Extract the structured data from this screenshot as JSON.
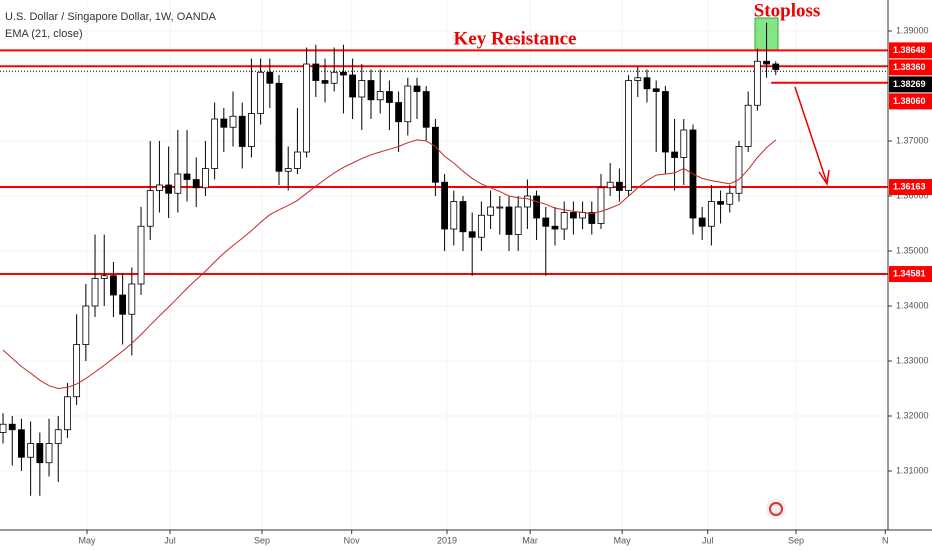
{
  "chart_data": {
    "type": "candlestick",
    "title": "U.S. Dollar / Singapore Dollar, 1W, OANDA",
    "indicator": {
      "name": "EMA (21, close)",
      "color": "#c62828",
      "values": [
        1.332,
        1.3305,
        1.329,
        1.3278,
        1.3265,
        1.3255,
        1.325,
        1.3252,
        1.3258,
        1.3268,
        1.328,
        1.3292,
        1.3305,
        1.3318,
        1.3332,
        1.3348,
        1.3365,
        1.3382,
        1.3398,
        1.3415,
        1.3432,
        1.3448,
        1.3463,
        1.348,
        1.3496,
        1.351,
        1.3523,
        1.3537,
        1.3552,
        1.3566,
        1.3575,
        1.3583,
        1.3592,
        1.3605,
        1.3618,
        1.363,
        1.3642,
        1.3652,
        1.366,
        1.3668,
        1.3675,
        1.368,
        1.3685,
        1.369,
        1.3697,
        1.3702,
        1.37,
        1.369,
        1.3672,
        1.366,
        1.3645,
        1.3632,
        1.3622,
        1.3615,
        1.3608,
        1.36,
        1.3597,
        1.3595,
        1.359,
        1.3585,
        1.3578,
        1.3575,
        1.3572,
        1.357,
        1.3568,
        1.3572,
        1.3578,
        1.3585,
        1.36,
        1.3615,
        1.3628,
        1.3638,
        1.364,
        1.3642,
        1.365,
        1.364,
        1.3632,
        1.3628,
        1.3625,
        1.3622,
        1.363,
        1.3648,
        1.367,
        1.3688,
        1.3702
      ]
    },
    "open": [
      1.317,
      1.3185,
      1.3175,
      1.3125,
      1.315,
      1.3115,
      1.315,
      1.3175,
      1.3235,
      1.333,
      1.34,
      1.345,
      1.3455,
      1.342,
      1.3385,
      1.344,
      1.3545,
      1.361,
      1.362,
      1.3605,
      1.364,
      1.363,
      1.3615,
      1.365,
      1.374,
      1.3725,
      1.3745,
      1.369,
      1.375,
      1.3825,
      1.3805,
      1.3645,
      1.365,
      1.368,
      1.384,
      1.381,
      1.3805,
      1.3825,
      1.382,
      1.378,
      1.381,
      1.3775,
      1.379,
      1.377,
      1.3735,
      1.38,
      1.379,
      1.3725,
      1.3625,
      1.354,
      1.359,
      1.3535,
      1.3525,
      1.3565,
      1.358,
      1.358,
      1.353,
      1.358,
      1.36,
      1.356,
      1.3545,
      1.354,
      1.357,
      1.356,
      1.357,
      1.355,
      1.3615,
      1.3625,
      1.361,
      1.381,
      1.3815,
      1.3795,
      1.379,
      1.368,
      1.367,
      1.372,
      1.356,
      1.3545,
      1.359,
      1.3585,
      1.3605,
      1.369,
      1.3765,
      1.3845,
      1.384
    ],
    "high": [
      1.3205,
      1.32,
      1.3195,
      1.319,
      1.317,
      1.3195,
      1.32,
      1.326,
      1.3385,
      1.344,
      1.353,
      1.353,
      1.348,
      1.346,
      1.347,
      1.358,
      1.37,
      1.37,
      1.369,
      1.372,
      1.372,
      1.367,
      1.37,
      1.377,
      1.376,
      1.379,
      1.377,
      1.385,
      1.385,
      1.385,
      1.382,
      1.369,
      1.376,
      1.387,
      1.3875,
      1.385,
      1.387,
      1.3875,
      1.385,
      1.384,
      1.383,
      1.383,
      1.381,
      1.379,
      1.3815,
      1.3815,
      1.38,
      1.374,
      1.364,
      1.361,
      1.36,
      1.357,
      1.359,
      1.361,
      1.36,
      1.36,
      1.36,
      1.363,
      1.361,
      1.358,
      1.358,
      1.359,
      1.359,
      1.359,
      1.359,
      1.364,
      1.366,
      1.365,
      1.382,
      1.3835,
      1.383,
      1.381,
      1.38,
      1.374,
      1.374,
      1.373,
      1.358,
      1.362,
      1.361,
      1.362,
      1.37,
      1.379,
      1.3868,
      1.3915,
      1.3845
    ],
    "low": [
      1.315,
      1.311,
      1.31,
      1.3055,
      1.3055,
      1.309,
      1.308,
      1.316,
      1.322,
      1.33,
      1.338,
      1.34,
      1.338,
      1.333,
      1.331,
      1.342,
      1.352,
      1.357,
      1.356,
      1.357,
      1.359,
      1.358,
      1.36,
      1.363,
      1.368,
      1.369,
      1.365,
      1.367,
      1.373,
      1.376,
      1.362,
      1.361,
      1.364,
      1.367,
      1.378,
      1.377,
      1.379,
      1.375,
      1.374,
      1.372,
      1.374,
      1.375,
      1.372,
      1.368,
      1.371,
      1.374,
      1.37,
      1.36,
      1.35,
      1.351,
      1.35,
      1.3455,
      1.35,
      1.354,
      1.353,
      1.35,
      1.35,
      1.354,
      1.352,
      1.3455,
      1.351,
      1.352,
      1.353,
      1.354,
      1.353,
      1.354,
      1.36,
      1.359,
      1.36,
      1.378,
      1.377,
      1.368,
      1.364,
      1.361,
      1.362,
      1.353,
      1.352,
      1.351,
      1.355,
      1.357,
      1.359,
      1.368,
      1.3755,
      1.3815,
      1.382
    ],
    "close": [
      1.3185,
      1.3175,
      1.3125,
      1.315,
      1.3115,
      1.315,
      1.3175,
      1.3235,
      1.333,
      1.34,
      1.345,
      1.3455,
      1.342,
      1.3385,
      1.344,
      1.3545,
      1.361,
      1.362,
      1.3605,
      1.364,
      1.363,
      1.3615,
      1.365,
      1.374,
      1.3725,
      1.3745,
      1.369,
      1.375,
      1.3825,
      1.3805,
      1.3645,
      1.365,
      1.368,
      1.384,
      1.381,
      1.3805,
      1.3825,
      1.382,
      1.378,
      1.381,
      1.3775,
      1.379,
      1.377,
      1.3735,
      1.38,
      1.379,
      1.3725,
      1.3625,
      1.354,
      1.359,
      1.3535,
      1.3525,
      1.3565,
      1.358,
      1.358,
      1.353,
      1.358,
      1.36,
      1.356,
      1.3545,
      1.354,
      1.357,
      1.356,
      1.357,
      1.355,
      1.3615,
      1.3625,
      1.361,
      1.381,
      1.3815,
      1.3795,
      1.379,
      1.368,
      1.367,
      1.372,
      1.356,
      1.3545,
      1.359,
      1.3585,
      1.3605,
      1.369,
      1.3765,
      1.3845,
      1.384,
      1.383
    ],
    "up_color": "#ffffff",
    "down_color": "#000000",
    "xlim": [
      -0.33,
      96.2
    ],
    "xticks": [
      {
        "value": 9.13,
        "label": "May"
      },
      {
        "value": 18.15,
        "label": "Jul"
      },
      {
        "value": 28.15,
        "label": "Sep"
      },
      {
        "value": 37.9,
        "label": "Nov"
      },
      {
        "value": 48.26,
        "label": "2019"
      },
      {
        "value": 57.3,
        "label": "Mar"
      },
      {
        "value": 67.3,
        "label": "May"
      },
      {
        "value": 76.6,
        "label": "Jul"
      },
      {
        "value": 86.2,
        "label": "Sep"
      },
      {
        "value": 95.9,
        "label": "N"
      }
    ],
    "ylim": [
      1.29927,
      1.39564
    ],
    "yticks": [
      {
        "value": 1.39,
        "label": "1.39000"
      },
      {
        "value": 1.37,
        "label": "1.37000"
      },
      {
        "value": 1.36,
        "label": "1.36000"
      },
      {
        "value": 1.35,
        "label": "1.35000"
      },
      {
        "value": 1.34,
        "label": "1.34000"
      },
      {
        "value": 1.33,
        "label": "1.33000"
      },
      {
        "value": 1.32,
        "label": "1.32000"
      },
      {
        "value": 1.31,
        "label": "1.31000"
      }
    ],
    "levels": [
      1.38648,
      {
        "value": 1.3836,
        "label": "1.38360"
      },
      {
        "value": 1.3806,
        "label": "1.38060"
      },
      1.36163,
      1.34581
    ],
    "level_color": "#ff0000",
    "last_price": 1.38269,
    "annotations": [
      "Key Resistance",
      "Stoploss"
    ]
  }
}
